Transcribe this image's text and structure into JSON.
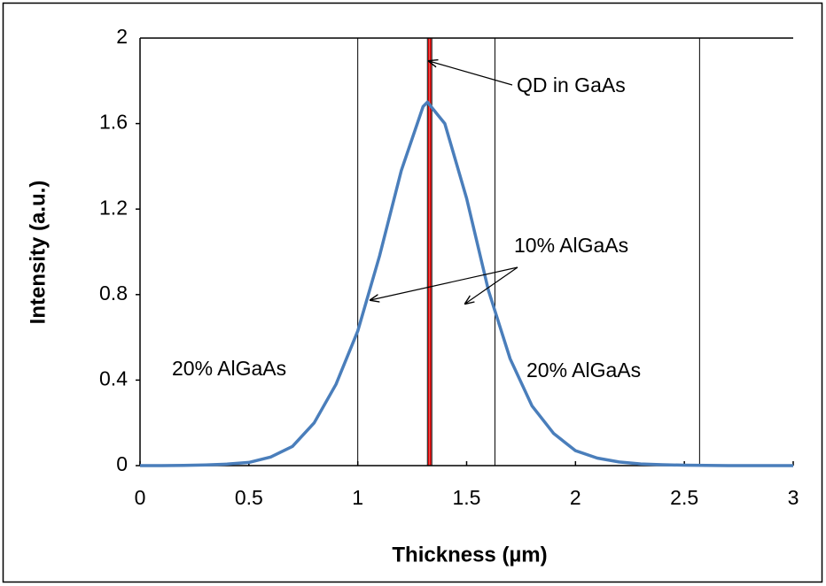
{
  "chart_data": {
    "type": "line",
    "x": [
      0,
      0.1,
      0.2,
      0.3,
      0.4,
      0.5,
      0.6,
      0.7,
      0.8,
      0.9,
      1.0,
      1.1,
      1.2,
      1.3,
      1.32,
      1.4,
      1.5,
      1.6,
      1.7,
      1.8,
      1.9,
      2.0,
      2.1,
      2.2,
      2.3,
      2.4,
      2.5,
      2.6,
      2.7,
      2.8,
      2.9,
      3.0
    ],
    "values": [
      0,
      0,
      0.001,
      0.003,
      0.007,
      0.015,
      0.04,
      0.09,
      0.2,
      0.38,
      0.63,
      0.98,
      1.38,
      1.68,
      1.7,
      1.6,
      1.25,
      0.82,
      0.5,
      0.28,
      0.15,
      0.07,
      0.035,
      0.017,
      0.008,
      0.004,
      0.002,
      0.001,
      0,
      0,
      0,
      0
    ],
    "color": "#4a7ebb",
    "xlabel": "Thickness (µm)",
    "ylabel": "Intensity (a.u.)",
    "xlim": [
      0,
      3
    ],
    "ylim": [
      0,
      2
    ],
    "xticks": [
      0,
      0.5,
      1,
      1.5,
      2,
      2.5,
      3
    ],
    "yticks": [
      0,
      0.4,
      0.8,
      1.2,
      1.6,
      2
    ],
    "boundaries": [
      1.0,
      1.63,
      2.57
    ],
    "qd_band": [
      1.32,
      1.34
    ],
    "annotations": [
      "QD in GaAs",
      "10% AlGaAs",
      "20% AlGaAs",
      "20% AlGaAs"
    ]
  }
}
